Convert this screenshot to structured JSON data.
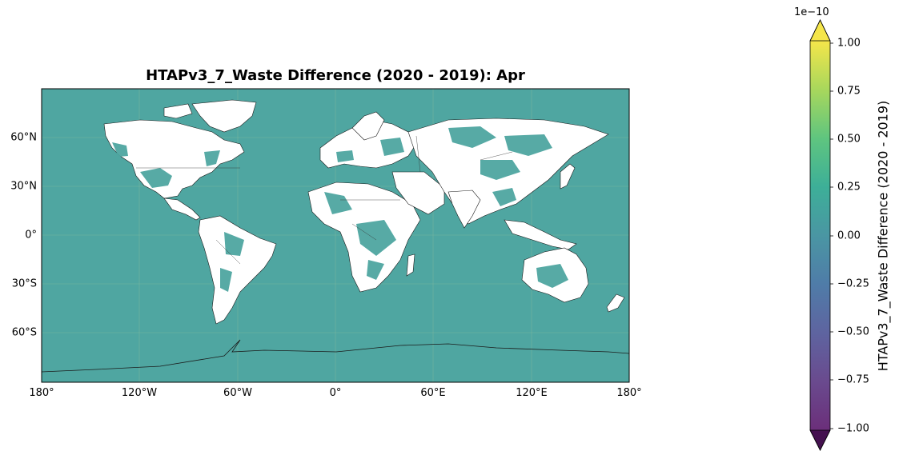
{
  "map": {
    "title": "HTAPv3_7_Waste Difference (2020 - 2019): Apr",
    "ocean_color": "#4fa6a1",
    "land_nodata_color": "#ffffff",
    "x_ticks": [
      "180°",
      "120°W",
      "60°W",
      "0°",
      "60°E",
      "120°E",
      "180°"
    ],
    "y_ticks": [
      "60°N",
      "30°N",
      "0°",
      "30°S",
      "60°S"
    ]
  },
  "colorbar": {
    "label": "HTAPv3_7_Waste Difference (2020 - 2019)",
    "multiplier": "1e−10",
    "ticks": [
      "1.00",
      "0.75",
      "0.50",
      "0.25",
      "0.00",
      "−0.25",
      "−0.50",
      "−0.75",
      "−1.00"
    ],
    "colormap": "viridis",
    "range": [
      -1.0,
      1.0
    ],
    "extend": "both"
  }
}
